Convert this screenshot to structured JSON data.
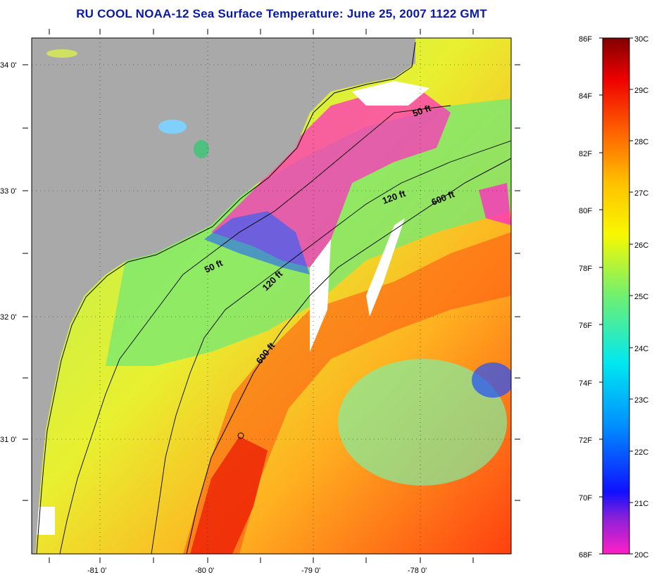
{
  "title": "RU COOL  NOAA-12  Sea Surface Temperature:  June 25, 2007 1122 GMT",
  "map": {
    "lon_labels": [
      "-81 0'",
      "-80 0'",
      "-79 0'",
      "-78 0'"
    ],
    "lat_labels": [
      "34 0'",
      "33 0'",
      "32 0'",
      "31 0'"
    ],
    "depth_contours": [
      "50 ft",
      "120 ft",
      "600 ft",
      "50 ft",
      "120 ft",
      "600 ft"
    ]
  },
  "colorbar": {
    "fahrenheit": [
      "86F",
      "84F",
      "82F",
      "80F",
      "78F",
      "76F",
      "74F",
      "72F",
      "70F",
      "68F"
    ],
    "celsius": [
      "30C",
      "29C",
      "28C",
      "27C",
      "26C",
      "25C",
      "24C",
      "23C",
      "22C",
      "21C",
      "20C"
    ]
  }
}
